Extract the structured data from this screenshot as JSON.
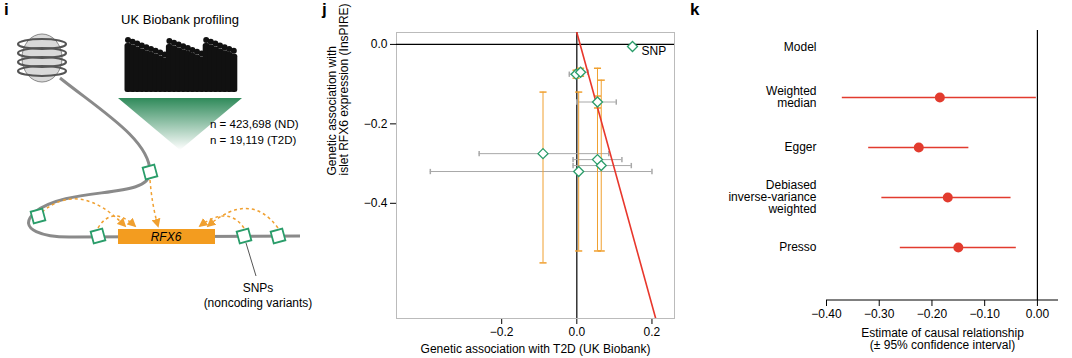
{
  "diagram": {
    "panel_label": "i",
    "title": "UK Biobank profiling",
    "counts": [
      "n = 423,698 (ND)",
      "n = 19,119 (T2D)"
    ],
    "gene": "RFX6",
    "snp_label": [
      "SNPs",
      "(noncoding variants)"
    ]
  },
  "chart_data": [
    {
      "panel_label": "j",
      "type": "scatter",
      "x_label": "Genetic association with T2D (UK Biobank)",
      "y_label": "Genetic association with\nislet RFX6 expression (InsPIRE)",
      "xlim": [
        -0.48,
        0.26
      ],
      "ylim": [
        -0.69,
        0.03
      ],
      "xticks": [
        -0.2,
        0,
        0.2
      ],
      "yticks": [
        0,
        -0.2,
        -0.4
      ],
      "reference_line": {
        "x": 0,
        "y": 0
      },
      "legend": "top-right",
      "series": [
        {
          "name": "SNP",
          "color": "#2a9d6a",
          "marker": "diamond",
          "x": [
            -0.002,
            0.01,
            0.055,
            -0.09,
            0.055,
            0.065,
            0.005
          ],
          "values": [
            -0.075,
            -0.07,
            -0.145,
            -0.275,
            -0.29,
            -0.305,
            -0.32
          ],
          "x_error": [
            [
              -0.02,
              0.015
            ],
            [
              -0.005,
              0.03
            ],
            [
              0.0,
              0.105
            ],
            [
              -0.26,
              0.085
            ],
            [
              -0.01,
              0.12
            ],
            [
              -0.01,
              0.145
            ],
            [
              -0.39,
              0.2
            ]
          ],
          "y_error": [
            [
              -0.085,
              -0.065
            ],
            [
              -0.08,
              -0.06
            ],
            [
              -0.16,
              -0.13
            ],
            [
              -0.55,
              -0.12
            ],
            [
              -0.52,
              -0.06
            ],
            [
              -0.52,
              -0.09
            ],
            [
              -0.52,
              -0.12
            ]
          ]
        }
      ],
      "fit_line": {
        "color": "#e8372c",
        "x": [
          0.0,
          0.21
        ],
        "values": [
          0.03,
          -0.69
        ]
      }
    },
    {
      "panel_label": "k",
      "type": "forest",
      "orientation": "horizontal",
      "categories": [
        "Model",
        "Weighted median",
        "Egger",
        "Debiased inverse-variance weighted",
        "Presso"
      ],
      "values": [
        null,
        -0.185,
        -0.225,
        -0.17,
        -0.15
      ],
      "ci": [
        null,
        [
          -0.37,
          -0.002
        ],
        [
          -0.32,
          -0.13
        ],
        [
          -0.295,
          -0.05
        ],
        [
          -0.26,
          -0.04
        ]
      ],
      "color": "#e23b2e",
      "x_label": "Estimate of causal relationship\n(± 95% confidence interval)",
      "xlim": [
        -0.4,
        0.04
      ],
      "xticks": [
        -0.4,
        -0.3,
        -0.2,
        -0.1,
        0
      ],
      "reference_line": {
        "x": 0
      }
    }
  ]
}
